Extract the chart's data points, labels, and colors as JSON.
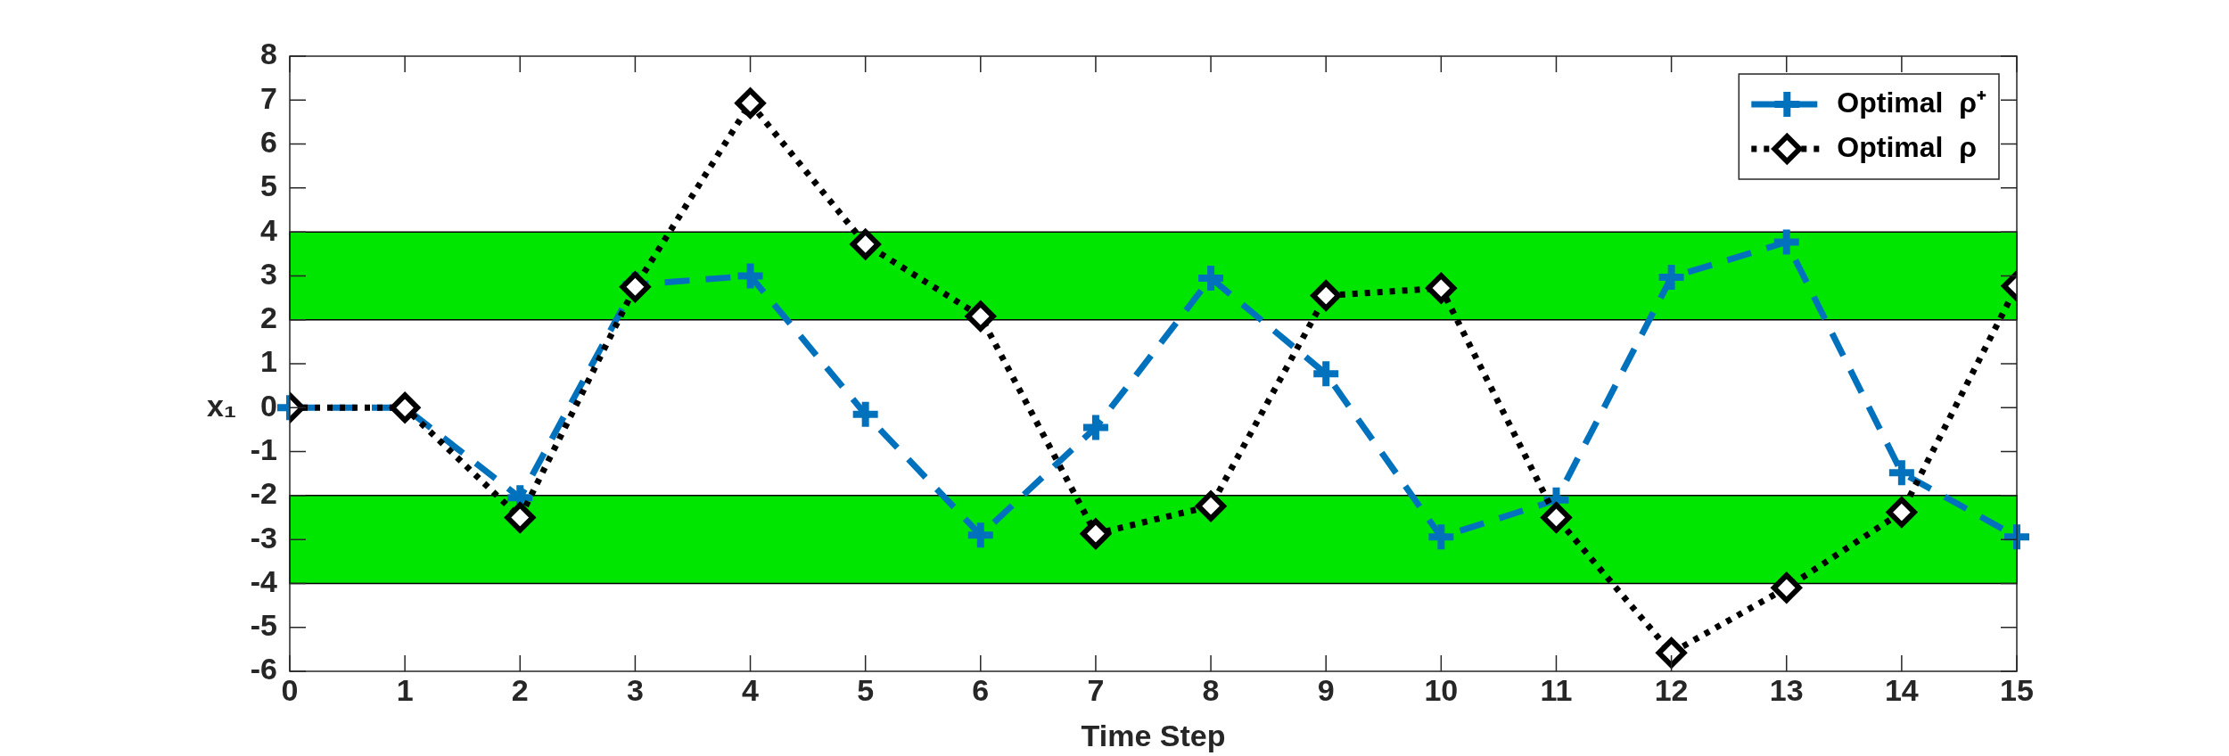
{
  "chart_data": {
    "type": "line",
    "xlabel": "Time Step",
    "ylabel": "x₁",
    "x": [
      0,
      1,
      2,
      3,
      4,
      5,
      6,
      7,
      8,
      9,
      10,
      11,
      12,
      13,
      14,
      15
    ],
    "xlim": [
      0,
      15
    ],
    "xticks": [
      0,
      1,
      2,
      3,
      4,
      5,
      6,
      7,
      8,
      9,
      10,
      11,
      12,
      13,
      14,
      15
    ],
    "ylim": [
      -6,
      8
    ],
    "yticks": [
      -6,
      -5,
      -4,
      -3,
      -2,
      -1,
      0,
      1,
      2,
      3,
      4,
      5,
      6,
      7,
      8
    ],
    "grid": false,
    "legend": "top right",
    "bands": [
      {
        "axis": "y",
        "from": 2,
        "to": 4,
        "color": "#00e600"
      },
      {
        "axis": "y",
        "from": -4,
        "to": -2,
        "color": "#00e600"
      }
    ],
    "series": [
      {
        "name": "Optimal  ρ⁺",
        "color": "#0072bd",
        "marker": "cross",
        "line_style": "dashed",
        "values": [
          0,
          0,
          -2.05,
          2.8,
          3.0,
          -0.15,
          -2.9,
          -0.45,
          2.95,
          0.77,
          -2.94,
          -2.1,
          2.97,
          3.77,
          -1.48,
          -2.94
        ]
      },
      {
        "name": "Optimal  ρ",
        "color": "#000000",
        "marker": "diamond",
        "line_style": "dotted",
        "values": [
          0,
          0,
          -2.5,
          2.75,
          6.93,
          3.72,
          2.08,
          -2.87,
          -2.24,
          2.55,
          2.72,
          -2.5,
          -5.58,
          -4.1,
          -2.38,
          2.77
        ]
      }
    ]
  }
}
